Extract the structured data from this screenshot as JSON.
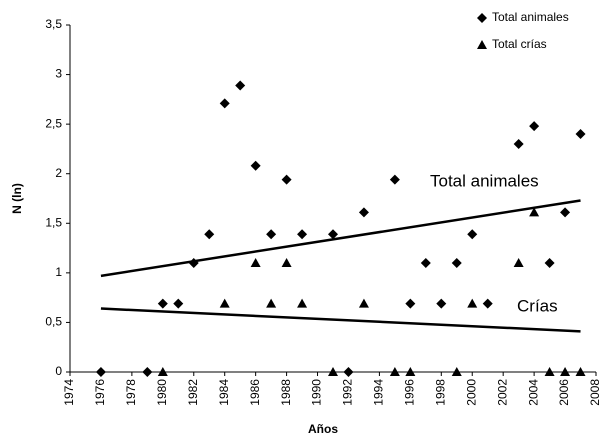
{
  "chart_data": {
    "type": "scatter",
    "x_label": "Años",
    "y_label": "N (ln)",
    "xlim": [
      1974,
      2008
    ],
    "xticks": [
      1974,
      1976,
      1978,
      1980,
      1982,
      1984,
      1986,
      1988,
      1990,
      1992,
      1994,
      1996,
      1998,
      2000,
      2002,
      2004,
      2006,
      2008
    ],
    "ylim": [
      0,
      3.5
    ],
    "yticks": [
      0,
      {
        "value": 0.5,
        "label": "0,5"
      },
      1,
      {
        "value": 1.5,
        "label": "1,5"
      },
      2,
      {
        "value": 2.5,
        "label": "2,5"
      },
      3,
      {
        "value": 3.5,
        "label": "3,5"
      }
    ],
    "grid": false,
    "legend": "top-right",
    "series": [
      {
        "name": "Total animales",
        "marker": "diamond",
        "color": "#000000",
        "x": [
          1976,
          1979,
          1980,
          1981,
          1982,
          1983,
          1984,
          1985,
          1986,
          1987,
          1988,
          1989,
          1991,
          1992,
          1993,
          1995,
          1996,
          1997,
          1998,
          1999,
          2000,
          2001,
          2003,
          2004,
          2005,
          2006,
          2007
        ],
        "values": [
          0,
          0,
          0.69,
          0.69,
          1.1,
          1.39,
          2.71,
          2.89,
          2.08,
          1.39,
          1.94,
          1.39,
          1.39,
          0,
          1.61,
          1.94,
          0.69,
          1.1,
          0.69,
          1.1,
          1.39,
          0.69,
          2.3,
          2.48,
          1.1,
          1.61,
          2.4
        ]
      },
      {
        "name": "Total crías",
        "marker": "triangle",
        "color": "#000000",
        "x": [
          1980,
          1984,
          1986,
          1987,
          1988,
          1989,
          1991,
          1993,
          1995,
          1996,
          1999,
          2000,
          2003,
          2004,
          2005,
          2006,
          2007
        ],
        "values": [
          0,
          0.69,
          1.1,
          0.69,
          1.1,
          0.69,
          0,
          0.69,
          0,
          0,
          0,
          0.69,
          1.1,
          1.61,
          0,
          0,
          0
        ]
      }
    ],
    "trendlines": [
      {
        "x": [
          1976,
          2007
        ],
        "values": [
          0.97,
          1.73
        ]
      },
      {
        "x": [
          1976,
          2007
        ],
        "values": [
          0.64,
          0.41
        ]
      }
    ],
    "annotations": [
      "Total animales",
      "Crías"
    ]
  }
}
